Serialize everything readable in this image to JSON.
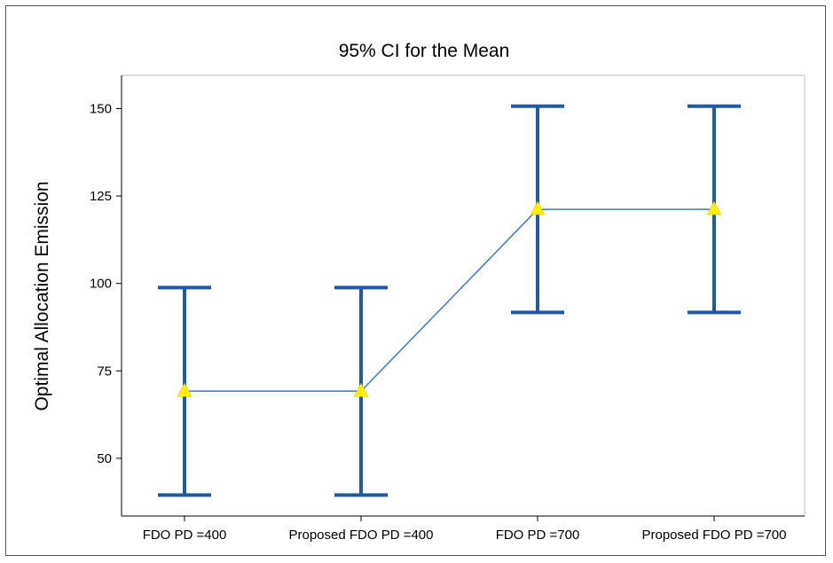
{
  "chart_data": {
    "type": "interval",
    "title": "95% CI for the Mean",
    "xlabel": "",
    "ylabel": "Optimal Allocation Emission",
    "categories": [
      "FDO  PD =400",
      "Proposed FDO PD =400",
      "FDO  PD =700",
      "Proposed FDO PD =700"
    ],
    "means": [
      69.2,
      69.2,
      121.2,
      121.2
    ],
    "lower": [
      39.5,
      39.5,
      91.7,
      91.7
    ],
    "upper": [
      98.8,
      98.8,
      150.7,
      150.7
    ],
    "yticks": [
      50,
      75,
      100,
      125,
      150
    ],
    "ylim": [
      33.5,
      159.5
    ],
    "grid": false,
    "colors": {
      "interval": "#1f5aa6",
      "mean_line": "#3a78c9",
      "mean_marker": "#ffee00",
      "plot_border": "#bdbdbd",
      "frame_border": "#555555"
    }
  }
}
